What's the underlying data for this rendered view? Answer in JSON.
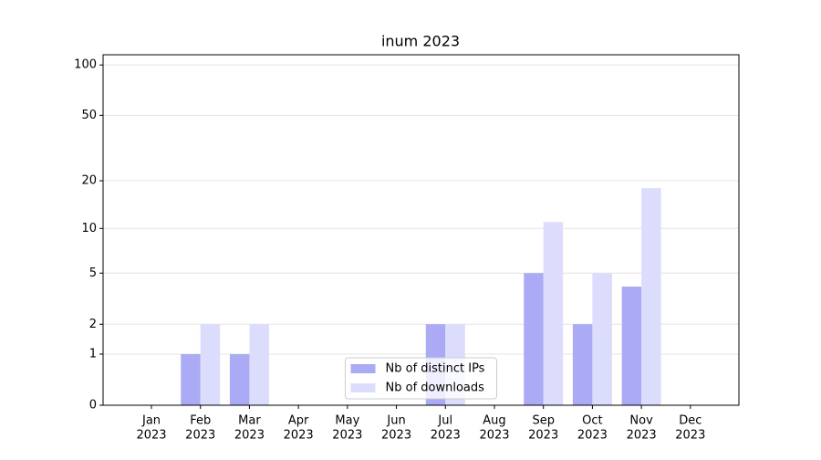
{
  "chart_data": {
    "type": "bar",
    "title": "inum 2023",
    "categories": [
      [
        "Jan",
        "2023"
      ],
      [
        "Feb",
        "2023"
      ],
      [
        "Mar",
        "2023"
      ],
      [
        "Apr",
        "2023"
      ],
      [
        "May",
        "2023"
      ],
      [
        "Jun",
        "2023"
      ],
      [
        "Jul",
        "2023"
      ],
      [
        "Aug",
        "2023"
      ],
      [
        "Sep",
        "2023"
      ],
      [
        "Oct",
        "2023"
      ],
      [
        "Nov",
        "2023"
      ],
      [
        "Dec",
        "2023"
      ]
    ],
    "series": [
      {
        "name": "Nb of distinct IPs",
        "color": "#aaaaf5",
        "values": [
          0,
          1,
          1,
          0,
          0,
          0,
          2,
          0,
          5,
          2,
          4,
          0
        ]
      },
      {
        "name": "Nb of downloads",
        "color": "#dcdcfc",
        "values": [
          0,
          2,
          2,
          0,
          0,
          0,
          2,
          0,
          11,
          5,
          18,
          0
        ]
      }
    ],
    "yscale": "log1p",
    "ylim": [
      0,
      115
    ],
    "yticks": [
      0,
      1,
      2,
      5,
      10,
      20,
      50,
      100
    ],
    "grid": true,
    "legend": "lower center"
  }
}
